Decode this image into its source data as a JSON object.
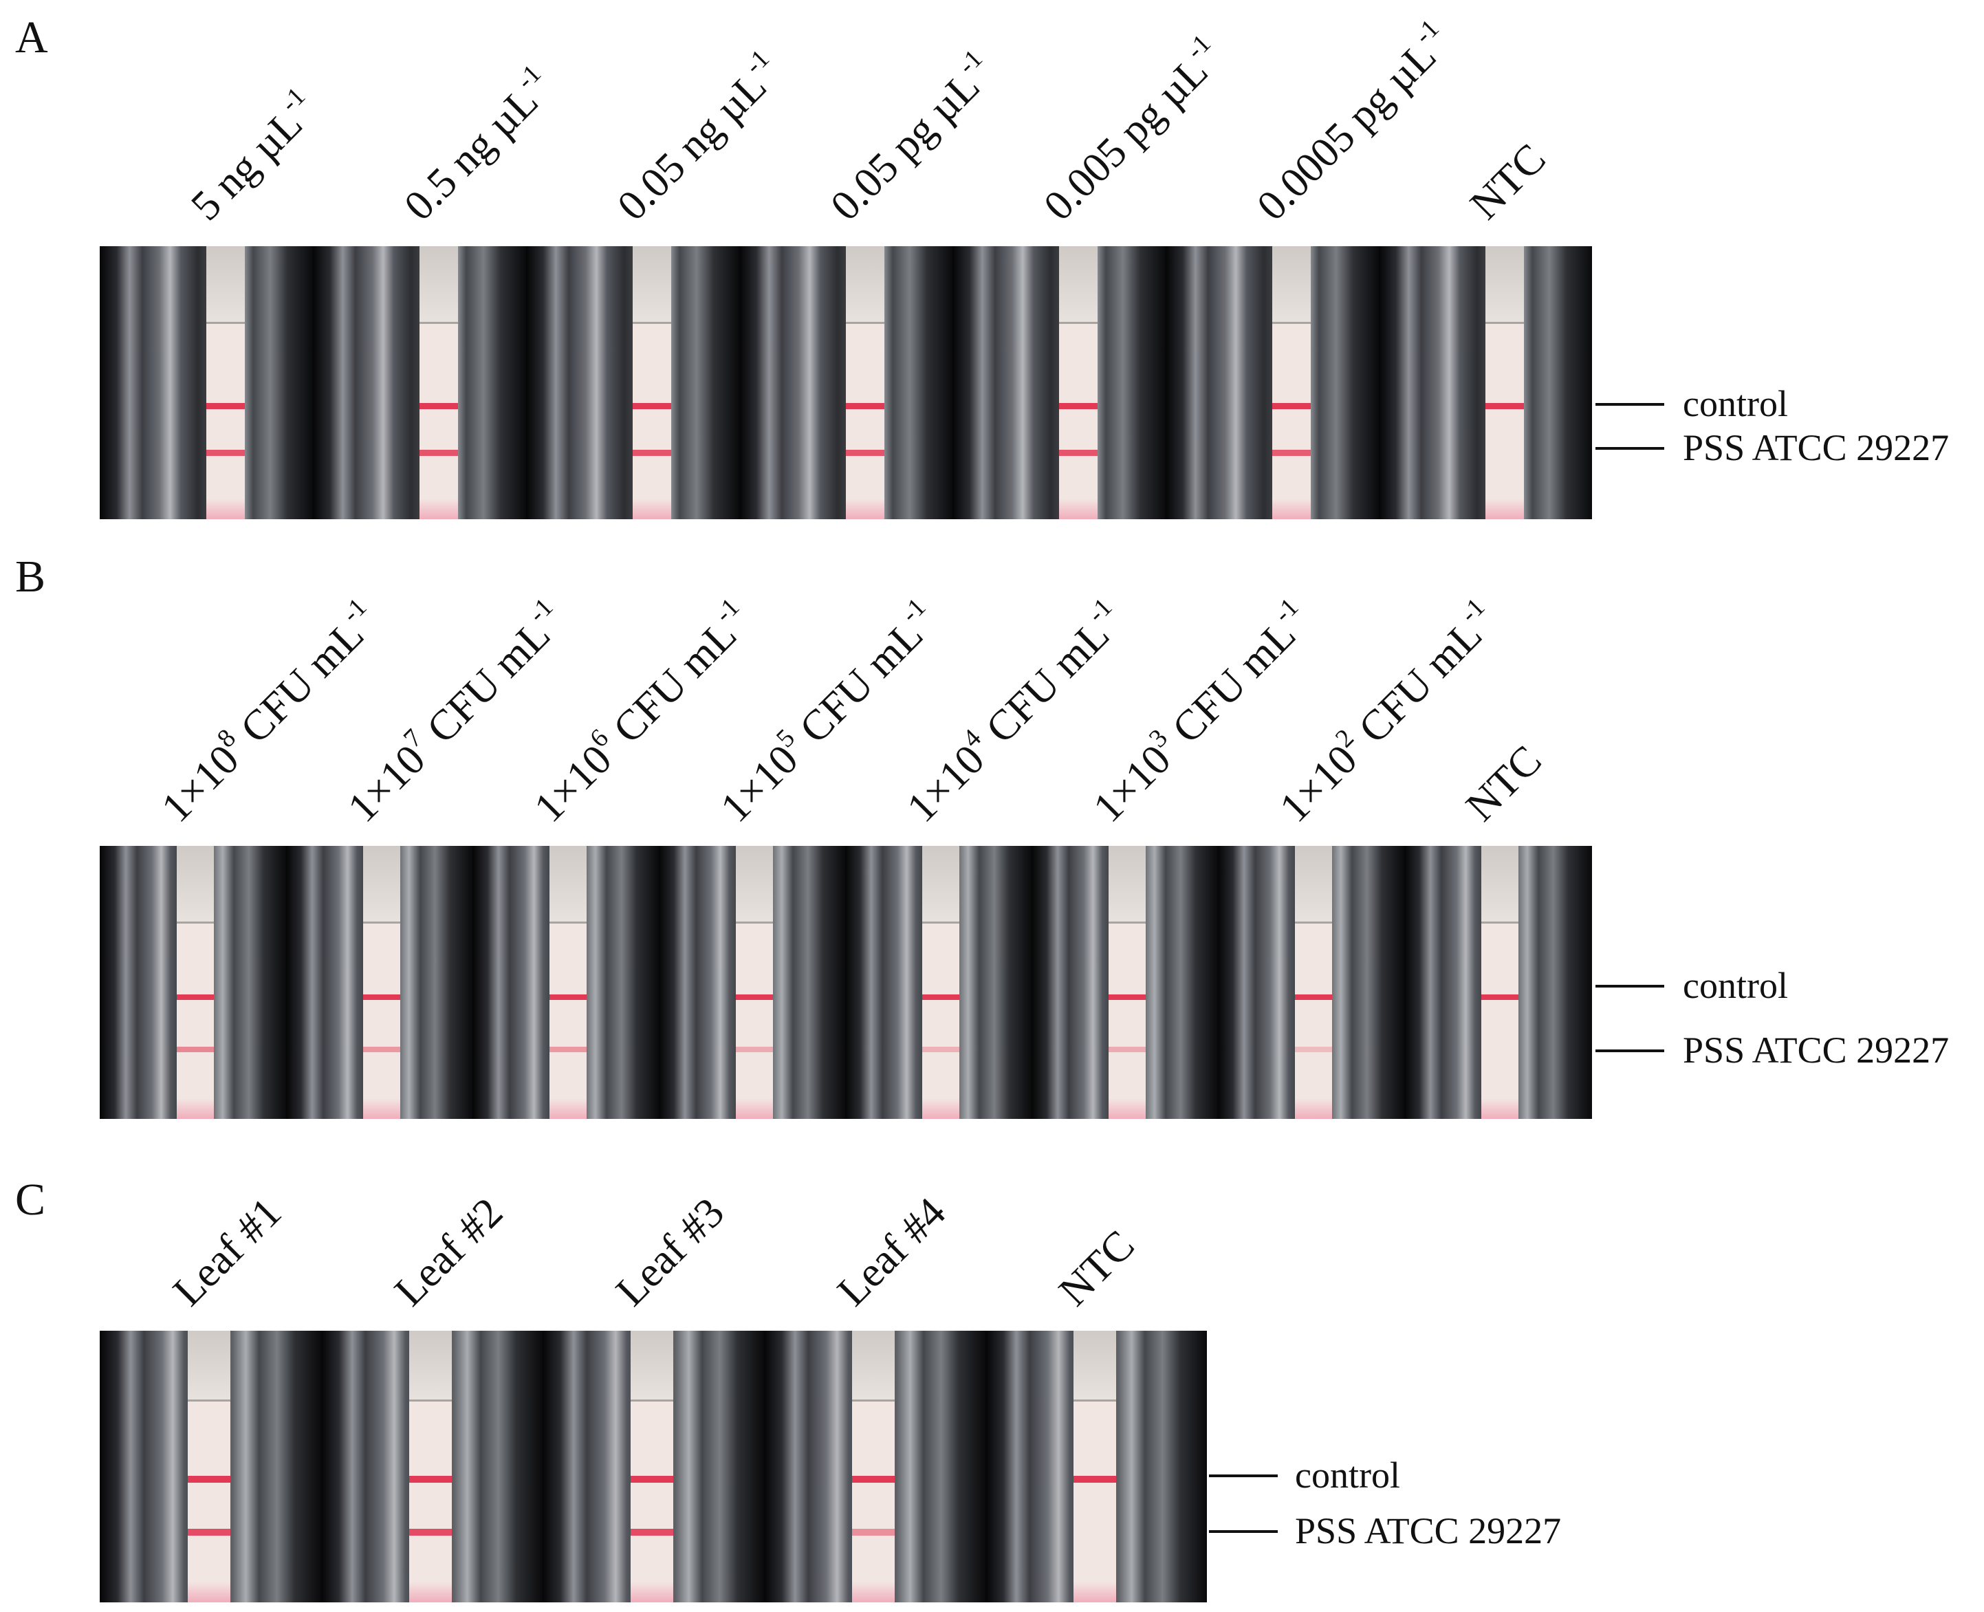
{
  "panels": [
    {
      "letter": "A",
      "lanes": [
        {
          "pre": "5 ng µL",
          "sup": "-1",
          "post": "",
          "test_line": 0.85
        },
        {
          "pre": "0.5 ng µL",
          "sup": "-1",
          "post": "",
          "test_line": 0.85
        },
        {
          "pre": "0.05 ng µL",
          "sup": "-1",
          "post": "",
          "test_line": 0.85
        },
        {
          "pre": "0.05 pg µL",
          "sup": "-1",
          "post": "",
          "test_line": 0.85
        },
        {
          "pre": "0.005 pg µL",
          "sup": "-1",
          "post": "",
          "test_line": 0.85
        },
        {
          "pre": "0.0005 pg µL",
          "sup": "-1",
          "post": "",
          "test_line": 0.8
        },
        {
          "pre": "NTC",
          "sup": "",
          "post": "",
          "test_line": 0
        }
      ],
      "markers": {
        "control": "control",
        "test": "PSS ATCC 29227"
      }
    },
    {
      "letter": "B",
      "lanes": [
        {
          "pre": "1×10",
          "sup": "8",
          "post": " CFU mL",
          "sup2": "-1",
          "test_line": 0.55
        },
        {
          "pre": "1×10",
          "sup": "7",
          "post": " CFU mL",
          "sup2": "-1",
          "test_line": 0.45
        },
        {
          "pre": "1×10",
          "sup": "6",
          "post": " CFU mL",
          "sup2": "-1",
          "test_line": 0.45
        },
        {
          "pre": "1×10",
          "sup": "5",
          "post": " CFU mL",
          "sup2": "-1",
          "test_line": 0.35
        },
        {
          "pre": "1×10",
          "sup": "4",
          "post": " CFU mL",
          "sup2": "-1",
          "test_line": 0.3
        },
        {
          "pre": "1×10",
          "sup": "3",
          "post": " CFU mL",
          "sup2": "-1",
          "test_line": 0.35
        },
        {
          "pre": "1×10",
          "sup": "2",
          "post": " CFU mL",
          "sup2": "-1",
          "test_line": 0.25
        },
        {
          "pre": "NTC",
          "sup": "",
          "post": "",
          "sup2": "",
          "test_line": 0
        }
      ],
      "markers": {
        "control": "control",
        "test": "PSS ATCC 29227"
      }
    },
    {
      "letter": "C",
      "lanes": [
        {
          "pre": "Leaf #1",
          "sup": "",
          "post": "",
          "test_line": 0.9
        },
        {
          "pre": "Leaf #2",
          "sup": "",
          "post": "",
          "test_line": 0.9
        },
        {
          "pre": "Leaf #3",
          "sup": "",
          "post": "",
          "test_line": 0.9
        },
        {
          "pre": "Leaf #4",
          "sup": "",
          "post": "",
          "test_line": 0.5
        },
        {
          "pre": "NTC",
          "sup": "",
          "post": "",
          "test_line": 0
        }
      ],
      "markers": {
        "control": "control",
        "test": "PSS ATCC 29227"
      }
    }
  ],
  "colors": {
    "band": "#e23a55",
    "strip": "#f2e6e3",
    "pad": "#ede9e6",
    "background_photo": "#0d0d10"
  }
}
